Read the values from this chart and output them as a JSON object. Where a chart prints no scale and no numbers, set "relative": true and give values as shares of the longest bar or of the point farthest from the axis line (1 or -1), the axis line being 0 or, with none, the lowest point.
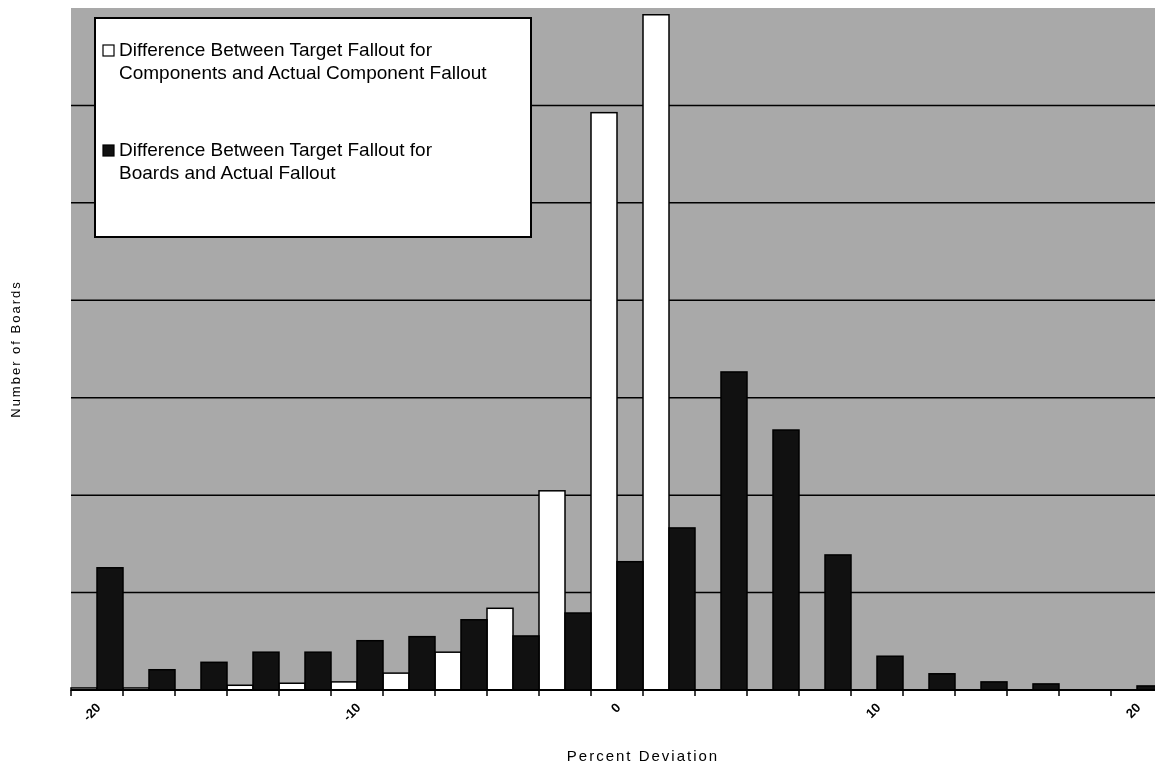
{
  "chart_data": {
    "type": "bar",
    "relative": true,
    "xlabel": "Percent Deviation",
    "ylabel": "Number of Boards",
    "categories": [
      "-20",
      null,
      null,
      null,
      null,
      "-10",
      null,
      null,
      null,
      null,
      "0",
      null,
      null,
      null,
      null,
      "10",
      null,
      null,
      null,
      null,
      "20"
    ],
    "series": [
      {
        "name": "Difference Between Target Fallout for Components and Actual Component Fallout",
        "color": "#ffffff",
        "values": [
          0.003,
          0.003,
          0,
          0.007,
          0.01,
          0.012,
          0.025,
          0.056,
          0.121,
          0.295,
          0.855,
          1,
          0,
          0,
          0,
          0,
          0,
          0,
          0,
          0,
          0
        ]
      },
      {
        "name": "Difference Between Target Fallout for Boards and Actual Fallout",
        "color": "#111111",
        "values": [
          0.181,
          0.03,
          0.041,
          0.056,
          0.056,
          0.073,
          0.079,
          0.104,
          0.08,
          0.114,
          0.19,
          0.24,
          0.471,
          0.385,
          0.2,
          0.05,
          0.024,
          0.012,
          0.009,
          0,
          0.006
        ]
      }
    ],
    "grid": true,
    "legend": "top left"
  }
}
